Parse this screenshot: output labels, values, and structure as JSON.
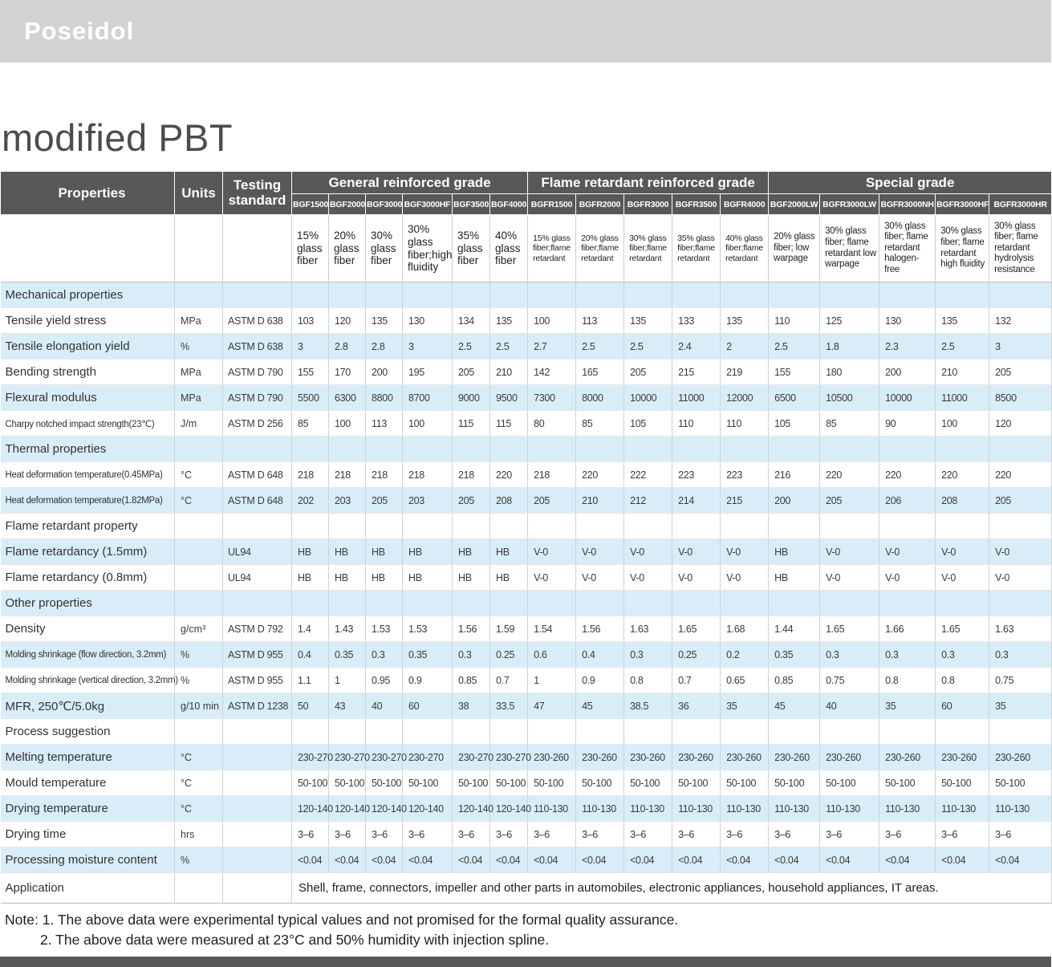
{
  "brand": {
    "logo": "Poseidol"
  },
  "page": {
    "title": "modified PBT"
  },
  "colors": {
    "header_gray": "#595757",
    "row_blue": "#d9edf8",
    "banner_gray": "#d2d2d2"
  },
  "table": {
    "header": {
      "properties": "Properties",
      "units": "Units",
      "testing": "Testing standard",
      "groups": [
        {
          "label": "General reinforced grade",
          "span": 6
        },
        {
          "label": "Flame retardant reinforced grade",
          "span": 5
        },
        {
          "label": "Special grade",
          "span": 5
        }
      ],
      "grades": [
        "BGF1500",
        "BGF2000",
        "BGF3000",
        "BGF3000HF",
        "BGF3500",
        "BGF4000",
        "BGFR1500",
        "BGFR2000",
        "BGFR3000",
        "BGFR3500",
        "BGFR4000",
        "BGF2000LW",
        "BGFR3000LW",
        "BGFR3000NH",
        "BGFR3000HF",
        "BGFR3000HR"
      ],
      "descriptions": [
        "15% glass fiber",
        "20% glass fiber",
        "30% glass fiber",
        "30% glass fiber;high fluidity",
        "35% glass fiber",
        "40% glass fiber",
        "15% glass fiber;flame retardant",
        "20% glass fiber;flame retardant",
        "30% glass fiber;flame retardant",
        "35% glass fiber;flame retardant",
        "40% glass fiber;flame retardant",
        "20% glass fiber; low warpage",
        "30% glass fiber; flame retardant low warpage",
        "30% glass fiber; flame retardant halogen-free",
        "30% glass fiber; flame retardant high fluidity",
        "30% glass fiber; flame retardant hydrolysis resistance"
      ]
    },
    "rows": [
      {
        "type": "section",
        "label": "Mechanical properties"
      },
      {
        "type": "data",
        "label": "Tensile yield stress",
        "unit": "MPa",
        "standard": "ASTM D 638",
        "values": [
          "103",
          "120",
          "135",
          "130",
          "134",
          "135",
          "100",
          "113",
          "135",
          "133",
          "135",
          "110",
          "125",
          "130",
          "135",
          "132"
        ]
      },
      {
        "type": "data",
        "label": "Tensile elongation yield",
        "unit": "%",
        "standard": "ASTM D 638",
        "values": [
          "3",
          "2.8",
          "2.8",
          "3",
          "2.5",
          "2.5",
          "2.7",
          "2.5",
          "2.5",
          "2.4",
          "2",
          "2.5",
          "1.8",
          "2.3",
          "2.5",
          "3"
        ]
      },
      {
        "type": "data",
        "label": "Bending strength",
        "unit": "MPa",
        "standard": "ASTM D 790",
        "values": [
          "155",
          "170",
          "200",
          "195",
          "205",
          "210",
          "142",
          "165",
          "205",
          "215",
          "219",
          "155",
          "180",
          "200",
          "210",
          "205"
        ]
      },
      {
        "type": "data",
        "label": "Flexural modulus",
        "unit": "MPa",
        "standard": "ASTM D 790",
        "values": [
          "5500",
          "6300",
          "8800",
          "8700",
          "9000",
          "9500",
          "7300",
          "8000",
          "10000",
          "11000",
          "12000",
          "6500",
          "10500",
          "10000",
          "11000",
          "8500"
        ]
      },
      {
        "type": "data",
        "label": "Charpy notched impact strength(23℃)",
        "unit": "J/m",
        "standard": "ASTM D 256",
        "values": [
          "85",
          "100",
          "113",
          "100",
          "115",
          "115",
          "80",
          "85",
          "105",
          "110",
          "110",
          "105",
          "85",
          "90",
          "100",
          "120"
        ]
      },
      {
        "type": "section",
        "label": "Thermal properties"
      },
      {
        "type": "data",
        "label": "Heat deformation temperature(0.45MPa)",
        "unit": "°C",
        "standard": "ASTM D 648",
        "values": [
          "218",
          "218",
          "218",
          "218",
          "218",
          "220",
          "218",
          "220",
          "222",
          "223",
          "223",
          "216",
          "220",
          "220",
          "220",
          "220"
        ]
      },
      {
        "type": "data",
        "label": "Heat deformation temperature(1.82MPa)",
        "unit": "°C",
        "standard": "ASTM D 648",
        "values": [
          "202",
          "203",
          "205",
          "203",
          "205",
          "208",
          "205",
          "210",
          "212",
          "214",
          "215",
          "200",
          "205",
          "206",
          "208",
          "205"
        ]
      },
      {
        "type": "section",
        "label": "Flame retardant property"
      },
      {
        "type": "data",
        "label": "Flame retardancy (1.5mm)",
        "unit": "",
        "standard": "UL94",
        "values": [
          "HB",
          "HB",
          "HB",
          "HB",
          "HB",
          "HB",
          "V-0",
          "V-0",
          "V-0",
          "V-0",
          "V-0",
          "HB",
          "V-0",
          "V-0",
          "V-0",
          "V-0"
        ]
      },
      {
        "type": "data",
        "label": "Flame retardancy (0.8mm)",
        "unit": "",
        "standard": "UL94",
        "values": [
          "HB",
          "HB",
          "HB",
          "HB",
          "HB",
          "HB",
          "V-0",
          "V-0",
          "V-0",
          "V-0",
          "V-0",
          "HB",
          "V-0",
          "V-0",
          "V-0",
          "V-0"
        ]
      },
      {
        "type": "section",
        "label": "Other properties"
      },
      {
        "type": "data",
        "label": "Density",
        "unit": "g/cm³",
        "standard": "ASTM D 792",
        "values": [
          "1.4",
          "1.43",
          "1.53",
          "1.53",
          "1.56",
          "1.59",
          "1.54",
          "1.56",
          "1.63",
          "1.65",
          "1.68",
          "1.44",
          "1.65",
          "1.66",
          "1.65",
          "1.63"
        ]
      },
      {
        "type": "data",
        "label": "Molding shrinkage (flow direction, 3.2mm)",
        "unit": "%",
        "standard": "ASTM D 955",
        "values": [
          "0.4",
          "0.35",
          "0.3",
          "0.35",
          "0.3",
          "0.25",
          "0.6",
          "0.4",
          "0.3",
          "0.25",
          "0.2",
          "0.35",
          "0.3",
          "0.3",
          "0.3",
          "0.3"
        ]
      },
      {
        "type": "data",
        "label": "Molding shrinkage (vertical direction, 3.2mm)",
        "unit": "%",
        "standard": "ASTM D 955",
        "values": [
          "1.1",
          "1",
          "0.95",
          "0.9",
          "0.85",
          "0.7",
          "1",
          "0.9",
          "0.8",
          "0.7",
          "0.65",
          "0.85",
          "0.75",
          "0.8",
          "0.8",
          "0.75"
        ]
      },
      {
        "type": "data",
        "label": "MFR, 250℃/5.0kg",
        "unit": "g/10 min",
        "standard": "ASTM D 1238",
        "values": [
          "50",
          "43",
          "40",
          "60",
          "38",
          "33.5",
          "47",
          "45",
          "38.5",
          "36",
          "35",
          "45",
          "40",
          "35",
          "60",
          "35"
        ]
      },
      {
        "type": "section",
        "label": "Process suggestion"
      },
      {
        "type": "data",
        "label": "Melting temperature",
        "unit": "°C",
        "standard": "",
        "values": [
          "230-270",
          "230-270",
          "230-270",
          "230-270",
          "230-270",
          "230-270",
          "230-260",
          "230-260",
          "230-260",
          "230-260",
          "230-260",
          "230-260",
          "230-260",
          "230-260",
          "230-260",
          "230-260"
        ]
      },
      {
        "type": "data",
        "label": "Mould temperature",
        "unit": "°C",
        "standard": "",
        "values": [
          "50-100",
          "50-100",
          "50-100",
          "50-100",
          "50-100",
          "50-100",
          "50-100",
          "50-100",
          "50-100",
          "50-100",
          "50-100",
          "50-100",
          "50-100",
          "50-100",
          "50-100",
          "50-100"
        ]
      },
      {
        "type": "data",
        "label": "Drying temperature",
        "unit": "°C",
        "standard": "",
        "values": [
          "120-140",
          "120-140",
          "120-140",
          "120-140",
          "120-140",
          "120-140",
          "110-130",
          "110-130",
          "110-130",
          "110-130",
          "110-130",
          "110-130",
          "110-130",
          "110-130",
          "110-130",
          "110-130"
        ]
      },
      {
        "type": "data",
        "label": "Drying time",
        "unit": "hrs",
        "standard": "",
        "values": [
          "3–6",
          "3–6",
          "3–6",
          "3–6",
          "3–6",
          "3–6",
          "3–6",
          "3–6",
          "3–6",
          "3–6",
          "3–6",
          "3–6",
          "3–6",
          "3–6",
          "3–6",
          "3–6"
        ]
      },
      {
        "type": "data",
        "label": "Processing moisture content",
        "unit": "%",
        "standard": "",
        "values": [
          "<0.04",
          "<0.04",
          "<0.04",
          "<0.04",
          "<0.04",
          "<0.04",
          "<0.04",
          "<0.04",
          "<0.04",
          "<0.04",
          "<0.04",
          "<0.04",
          "<0.04",
          "<0.04",
          "<0.04",
          "<0.04"
        ]
      }
    ],
    "application": {
      "label": "Application",
      "text": "Shell, frame, connectors, impeller and other parts in automobiles, electronic appliances, household appliances, IT areas."
    }
  },
  "notes": {
    "line1": "Note: 1. The above data were experimental typical values and not promised for the formal quality assurance.",
    "line2": "2. The above data were measured at 23°C and 50% humidity with injection spline."
  }
}
